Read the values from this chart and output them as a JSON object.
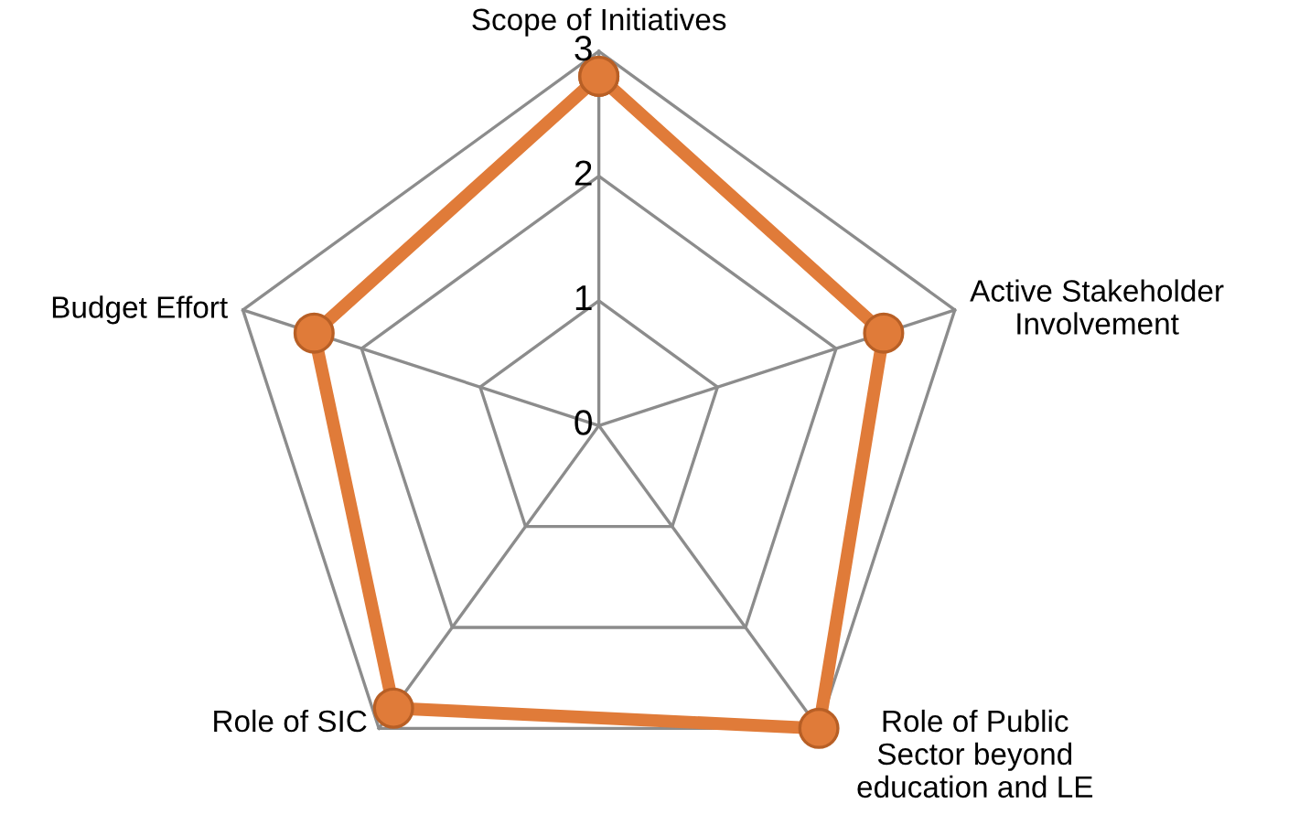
{
  "chart_data": {
    "type": "radar",
    "categories": [
      "Scope of Initiatives",
      "Active Stakeholder\nInvolvement",
      "Role of Public\nSector beyond\neducation and LE",
      "Role of SIC",
      "Budget Effort"
    ],
    "series": [
      {
        "color": "#e07b39",
        "values": [
          2.8,
          2.4,
          3.0,
          2.8,
          2.4
        ]
      }
    ],
    "ylim": [
      0,
      3
    ],
    "yticks": [
      0,
      1,
      2,
      3
    ],
    "grid": true,
    "marker": "circle",
    "legend": false
  }
}
